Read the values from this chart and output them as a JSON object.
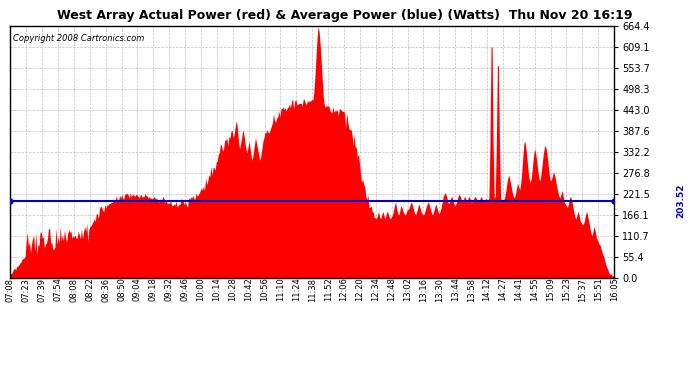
{
  "title": "West Array Actual Power (red) & Average Power (blue) (Watts)  Thu Nov 20 16:19",
  "copyright": "Copyright 2008 Cartronics.com",
  "average_power": 203.52,
  "y_max": 664.4,
  "y_ticks": [
    0.0,
    55.4,
    110.7,
    166.1,
    221.5,
    276.8,
    332.2,
    387.6,
    443.0,
    498.3,
    553.7,
    609.1,
    664.4
  ],
  "x_labels": [
    "07:08",
    "07:23",
    "07:39",
    "07:54",
    "08:08",
    "08:22",
    "08:36",
    "08:50",
    "09:04",
    "09:18",
    "09:32",
    "09:46",
    "10:00",
    "10:14",
    "10:28",
    "10:42",
    "10:56",
    "11:10",
    "11:24",
    "11:38",
    "11:52",
    "12:06",
    "12:20",
    "12:34",
    "12:48",
    "13:02",
    "13:16",
    "13:30",
    "13:44",
    "13:58",
    "14:12",
    "14:27",
    "14:41",
    "14:55",
    "15:09",
    "15:23",
    "15:37",
    "15:51",
    "16:05"
  ],
  "bg_color": "#ffffff",
  "fill_color": "#ff0000",
  "line_color": "#0000cc",
  "grid_color": "#b0b0b0",
  "title_color": "#000000"
}
